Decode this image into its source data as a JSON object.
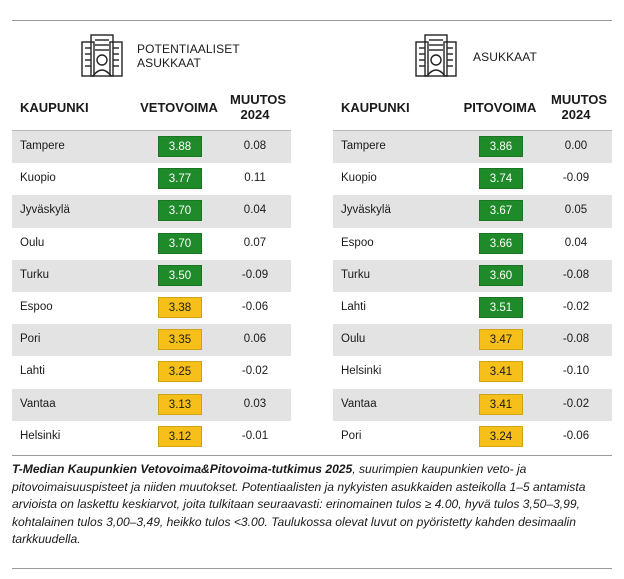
{
  "colors": {
    "green": "#1f8a2a",
    "yellow": "#f6bf1a",
    "row_alt": "#e3e3e3",
    "text": "#1a1a1a"
  },
  "panels": [
    {
      "icon": "building-person-icon",
      "title_line1": "POTENTIAALISET",
      "title_line2": "ASUKKAAT",
      "col_city": "KAUPUNKI",
      "col_score": "VETOVOIMA",
      "col_change1": "MUUTOS",
      "col_change2": "2024"
    },
    {
      "icon": "building-person-icon",
      "title_line1": "ASUKKAAT",
      "title_line2": "",
      "col_city": "KAUPUNKI",
      "col_score": "PITOVOIMA",
      "col_change1": "MUUTOS",
      "col_change2": "2024"
    }
  ],
  "chart_data": [
    {
      "type": "table",
      "score_column": "VETOVOIMA",
      "change_column": "MUUTOS 2024",
      "rows": [
        {
          "city": "Tampere",
          "score": "3.88",
          "change": "0.08",
          "color": "#1f8a2a",
          "text_color": "#ffffff"
        },
        {
          "city": "Kuopio",
          "score": "3.77",
          "change": "0.11",
          "color": "#1f8a2a",
          "text_color": "#ffffff"
        },
        {
          "city": "Jyväskylä",
          "score": "3.70",
          "change": "0.04",
          "color": "#1f8a2a",
          "text_color": "#ffffff"
        },
        {
          "city": "Oulu",
          "score": "3.70",
          "change": "0.07",
          "color": "#1f8a2a",
          "text_color": "#ffffff"
        },
        {
          "city": "Turku",
          "score": "3.50",
          "change": "-0.09",
          "color": "#1f8a2a",
          "text_color": "#ffffff"
        },
        {
          "city": "Espoo",
          "score": "3.38",
          "change": "-0.06",
          "color": "#f6bf1a",
          "text_color": "#1a1a1a"
        },
        {
          "city": "Pori",
          "score": "3.35",
          "change": "0.06",
          "color": "#f6bf1a",
          "text_color": "#1a1a1a"
        },
        {
          "city": "Lahti",
          "score": "3.25",
          "change": "-0.02",
          "color": "#f6bf1a",
          "text_color": "#1a1a1a"
        },
        {
          "city": "Vantaa",
          "score": "3.13",
          "change": "0.03",
          "color": "#f6bf1a",
          "text_color": "#1a1a1a"
        },
        {
          "city": "Helsinki",
          "score": "3.12",
          "change": "-0.01",
          "color": "#f6bf1a",
          "text_color": "#1a1a1a"
        }
      ]
    },
    {
      "type": "table",
      "score_column": "PITOVOIMA",
      "change_column": "MUUTOS 2024",
      "rows": [
        {
          "city": "Tampere",
          "score": "3.86",
          "change": "0.00",
          "color": "#1f8a2a",
          "text_color": "#ffffff"
        },
        {
          "city": "Kuopio",
          "score": "3.74",
          "change": "-0.09",
          "color": "#1f8a2a",
          "text_color": "#ffffff"
        },
        {
          "city": "Jyväskylä",
          "score": "3.67",
          "change": "0.05",
          "color": "#1f8a2a",
          "text_color": "#ffffff"
        },
        {
          "city": "Espoo",
          "score": "3.66",
          "change": "0.04",
          "color": "#1f8a2a",
          "text_color": "#ffffff"
        },
        {
          "city": "Turku",
          "score": "3.60",
          "change": "-0.08",
          "color": "#1f8a2a",
          "text_color": "#ffffff"
        },
        {
          "city": "Lahti",
          "score": "3.51",
          "change": "-0.02",
          "color": "#1f8a2a",
          "text_color": "#ffffff"
        },
        {
          "city": "Oulu",
          "score": "3.47",
          "change": "-0.08",
          "color": "#f6bf1a",
          "text_color": "#1a1a1a"
        },
        {
          "city": "Helsinki",
          "score": "3.41",
          "change": "-0.10",
          "color": "#f6bf1a",
          "text_color": "#1a1a1a"
        },
        {
          "city": "Vantaa",
          "score": "3.41",
          "change": "-0.02",
          "color": "#f6bf1a",
          "text_color": "#1a1a1a"
        },
        {
          "city": "Pori",
          "score": "3.24",
          "change": "-0.06",
          "color": "#f6bf1a",
          "text_color": "#1a1a1a"
        }
      ]
    }
  ],
  "caption": {
    "bold": "T-Median Kaupunkien Vetovoima&Pitovoima-tutkimus 2025",
    "text": ", suurimpien kaupunkien veto- ja pitovoimaisuuspisteet ja niiden muutokset. Potentiaalisten ja nykyisten asukkaiden asteikolla 1–5 antamista arvioista on laskettu keskiarvot, joita tulkitaan seuraavasti: erinomainen tulos ≥ 4.00, hyvä tulos 3,50–3,99, kohtalainen tulos 3,00–3,49, heikko tulos <3.00. Taulukossa olevat luvut on pyöristetty kahden desimaalin tarkkuudella."
  }
}
